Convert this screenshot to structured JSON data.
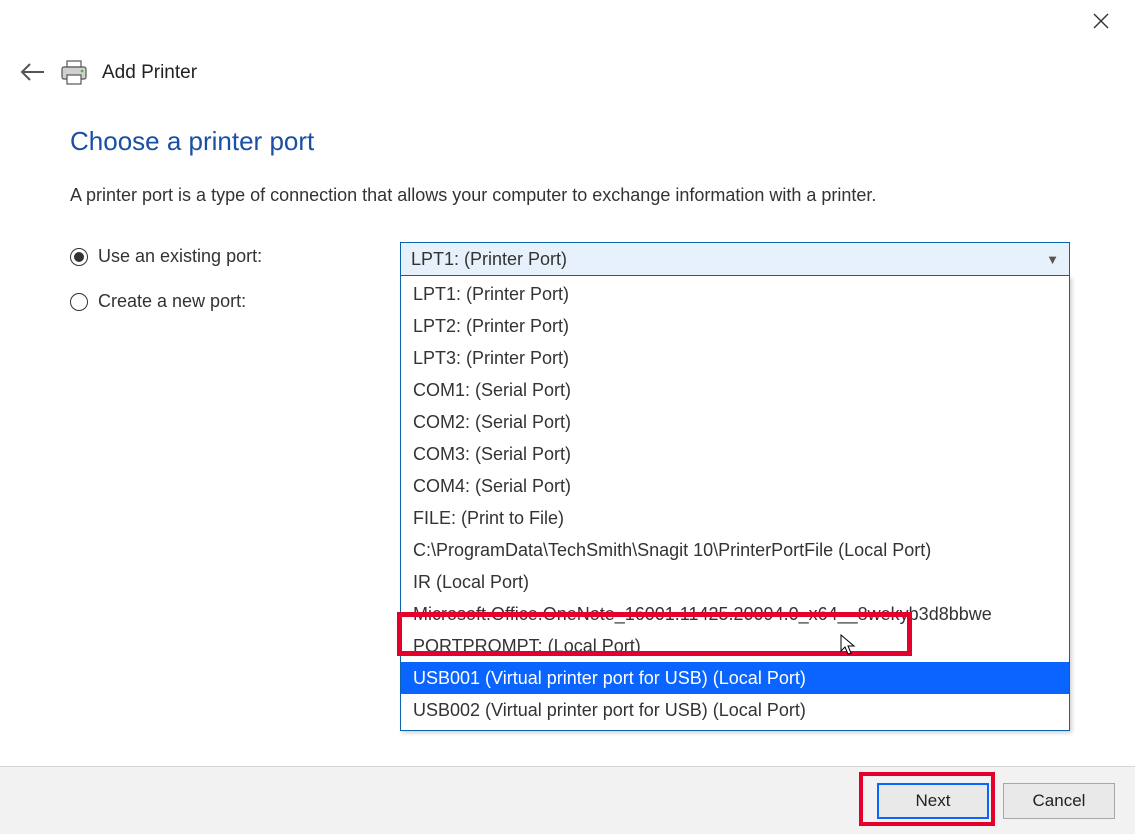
{
  "window": {
    "title": "Add Printer"
  },
  "page": {
    "heading": "Choose a printer port",
    "description": "A printer port is a type of connection that allows your computer to exchange information with a printer."
  },
  "radios": {
    "existing": "Use an existing port:",
    "create": "Create a new port:"
  },
  "combo": {
    "selected": "LPT1: (Printer Port)",
    "options": [
      "LPT1: (Printer Port)",
      "LPT2: (Printer Port)",
      "LPT3: (Printer Port)",
      "COM1: (Serial Port)",
      "COM2: (Serial Port)",
      "COM3: (Serial Port)",
      "COM4: (Serial Port)",
      "FILE: (Print to File)",
      "C:\\ProgramData\\TechSmith\\Snagit 10\\PrinterPortFile (Local Port)",
      "IR (Local Port)",
      "Microsoft.Office.OneNote_16001.11425.20094.0_x64__8wekyb3d8bbwe",
      "PORTPROMPT: (Local Port)",
      "USB001 (Virtual printer port for USB) (Local Port)",
      "USB002 (Virtual printer port for USB) (Local Port)"
    ],
    "highlight_index": 12
  },
  "buttons": {
    "next": "Next",
    "cancel": "Cancel"
  },
  "colors": {
    "heading": "#1a4fa3",
    "highlight_red": "#e4002b",
    "selection_blue": "#0a64ff",
    "combo_border": "#0a64ad",
    "combo_bg": "#e7f1fb"
  }
}
